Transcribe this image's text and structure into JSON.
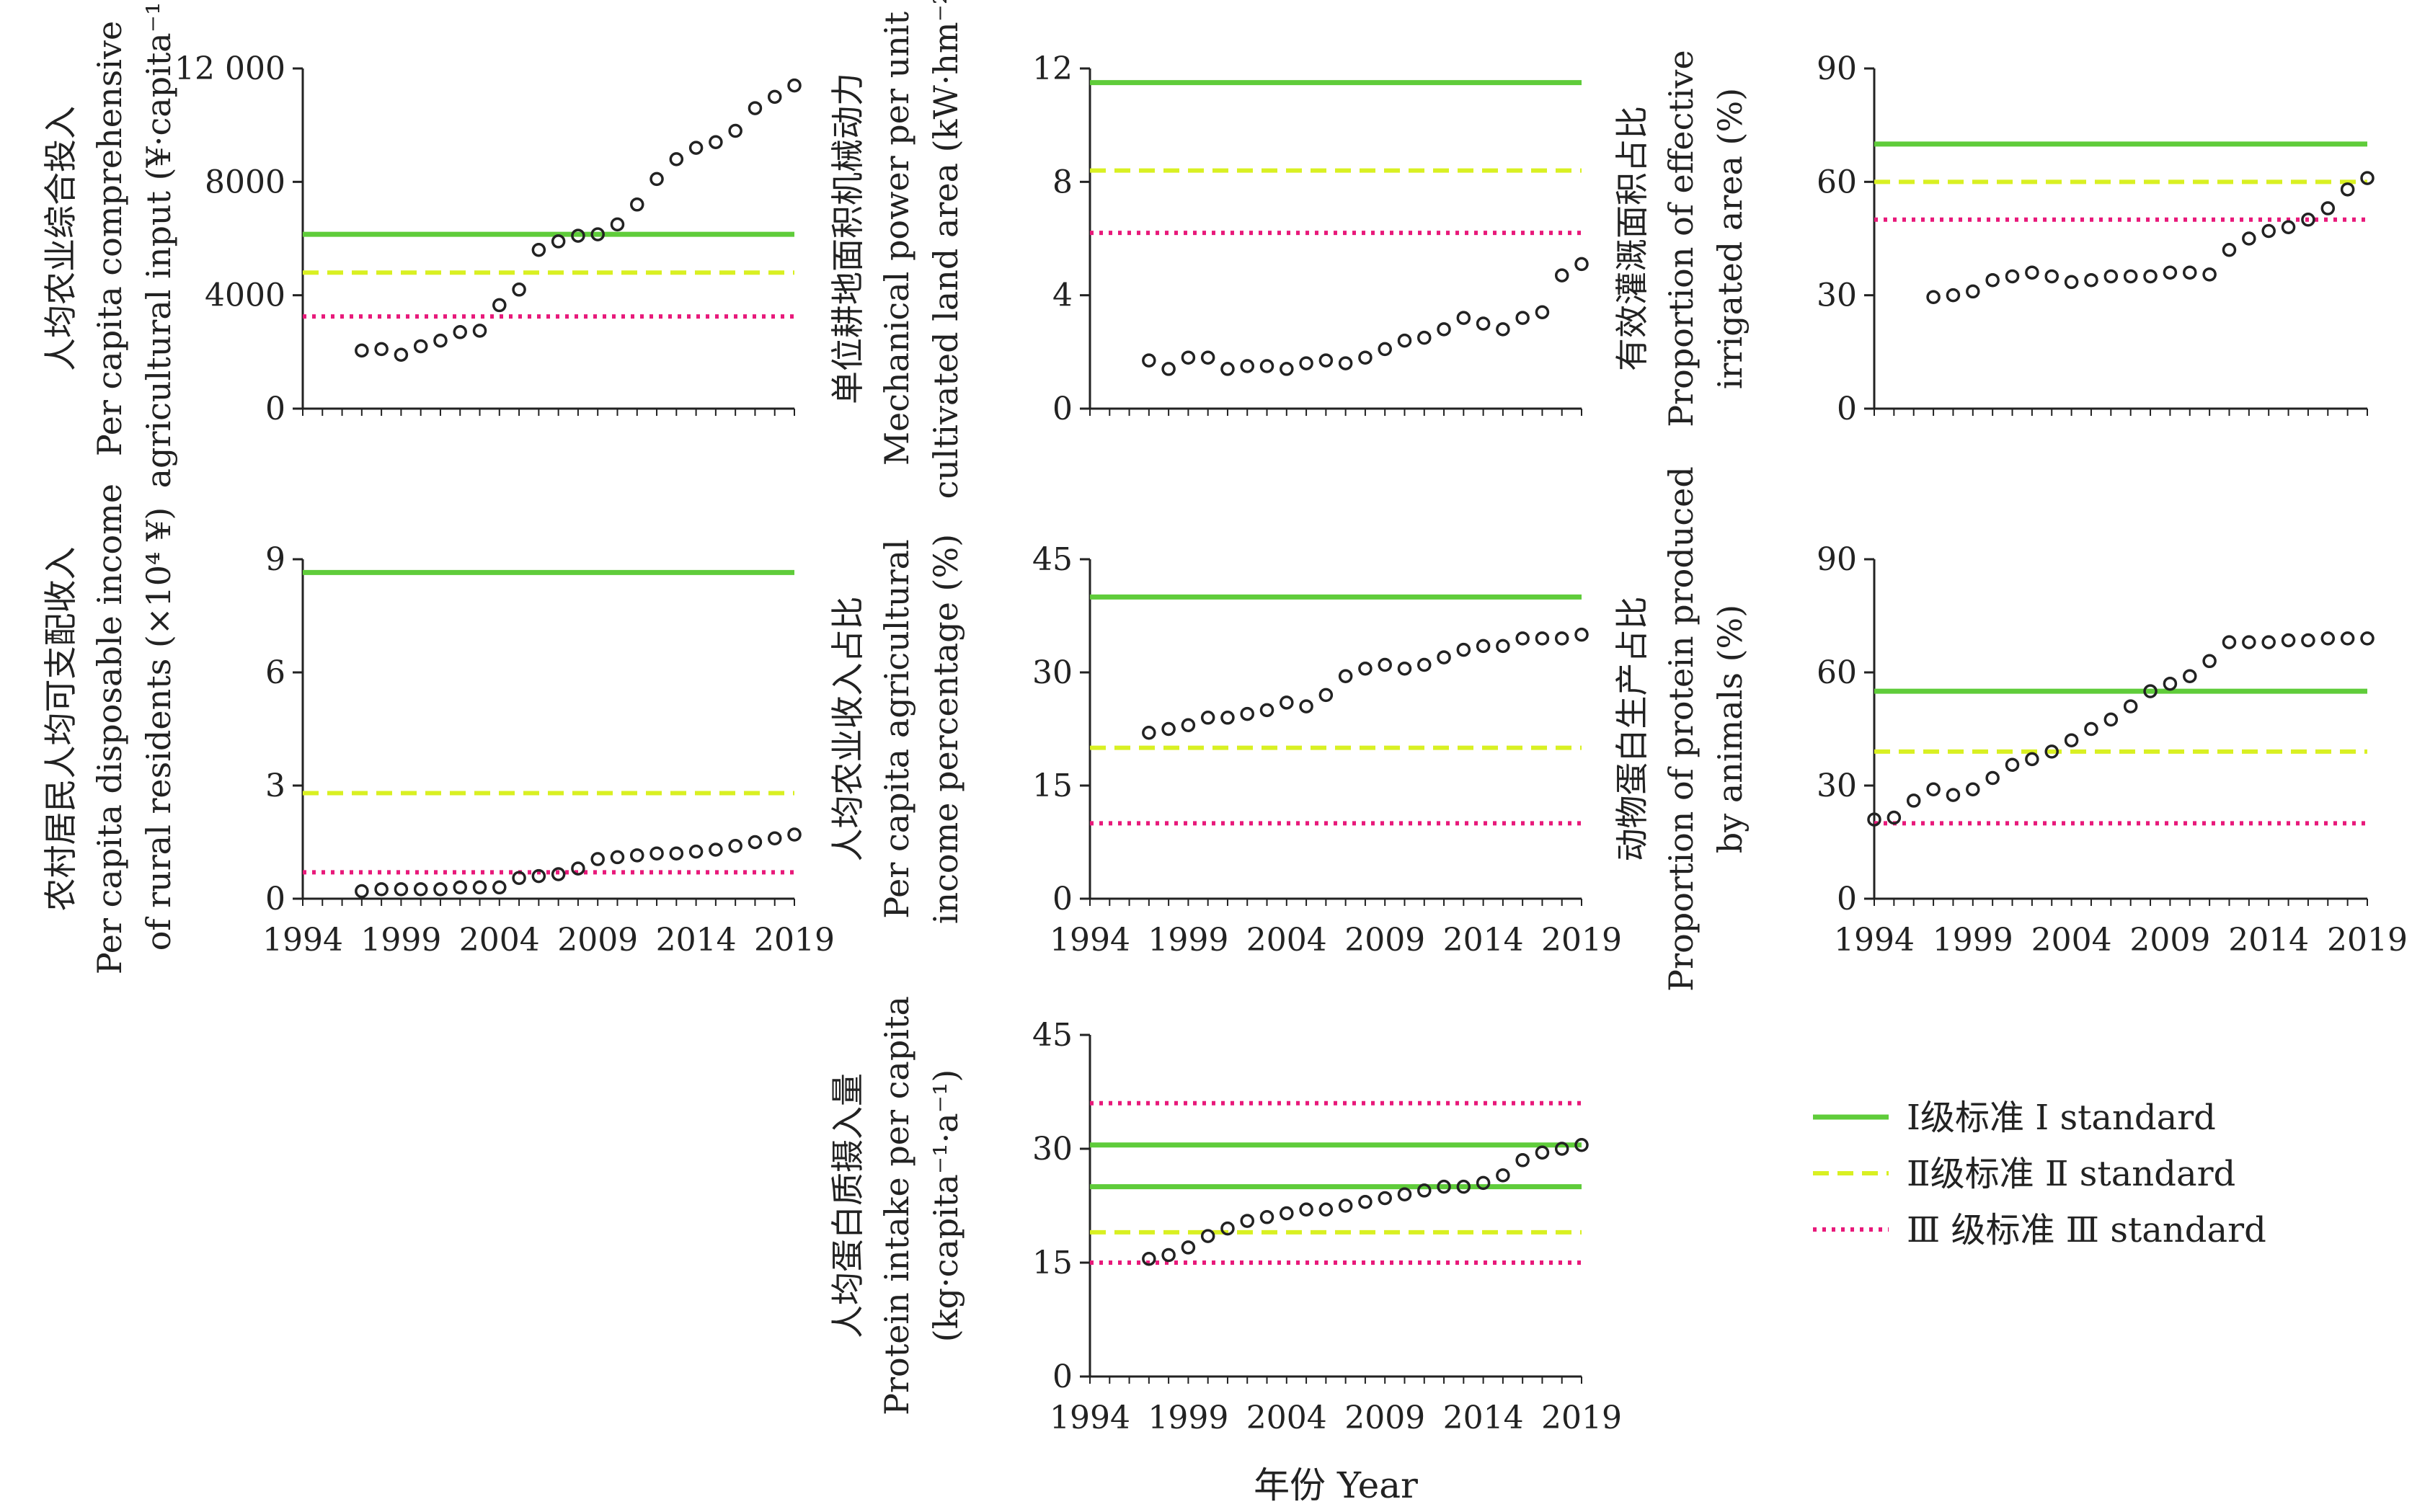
{
  "colors": {
    "standard_I": "#5fcc3a",
    "standard_II": "#d9f022",
    "standard_III": "#e8197a",
    "axis": "#222222",
    "marker": "#222222"
  },
  "x_axis_title": "年份 Year",
  "legend": {
    "position": "bottom-right",
    "items": [
      {
        "key": "I",
        "label": "Ⅰ级标准 Ⅰ standard",
        "style": "solid"
      },
      {
        "key": "II",
        "label": "Ⅱ级标准 Ⅱ standard",
        "style": "dashed"
      },
      {
        "key": "III",
        "label": "Ⅲ 级标准 Ⅲ standard",
        "style": "dotted"
      }
    ]
  },
  "chart_data": [
    {
      "type": "scatter",
      "ylabel_lines": [
        "人均农业综合投入",
        "Per capita comprehensive",
        "agricultural input (¥·capita⁻¹)"
      ],
      "xlim": [
        1994,
        2019
      ],
      "ylim": [
        0,
        12000
      ],
      "yticks": [
        0,
        4000,
        8000,
        12000
      ],
      "ytick_labels": [
        "0",
        "4000",
        "8000",
        "12 000"
      ],
      "xticks": [],
      "x": [
        1997,
        1998,
        1999,
        2000,
        2001,
        2002,
        2003,
        2004,
        2005,
        2006,
        2007,
        2008,
        2009,
        2010,
        2011,
        2012,
        2013,
        2014,
        2015,
        2016,
        2017,
        2018,
        2019
      ],
      "y": [
        2050,
        2100,
        1900,
        2200,
        2400,
        2700,
        2750,
        3650,
        4200,
        5600,
        5900,
        6100,
        6150,
        6500,
        7200,
        8100,
        8800,
        9200,
        9400,
        9800,
        10600,
        11000,
        11400
      ],
      "standards": [
        {
          "level": "I",
          "value": 6150
        },
        {
          "level": "II",
          "value": 4800
        },
        {
          "level": "III",
          "value": 3250
        }
      ]
    },
    {
      "type": "scatter",
      "ylabel_lines": [
        "单位耕地面积机械动力",
        "Mechanical power per unit",
        "cultivated land area (kW·hm⁻²)"
      ],
      "xlim": [
        1994,
        2019
      ],
      "ylim": [
        0,
        12
      ],
      "yticks": [
        0,
        4,
        8,
        12
      ],
      "ytick_labels": [
        "0",
        "4",
        "8",
        "12"
      ],
      "xticks": [],
      "x": [
        1997,
        1998,
        1999,
        2000,
        2001,
        2002,
        2003,
        2004,
        2005,
        2006,
        2007,
        2008,
        2009,
        2010,
        2011,
        2012,
        2013,
        2014,
        2015,
        2016,
        2017,
        2018,
        2019
      ],
      "y": [
        1.7,
        1.4,
        1.8,
        1.8,
        1.4,
        1.5,
        1.5,
        1.4,
        1.6,
        1.7,
        1.6,
        1.8,
        2.1,
        2.4,
        2.5,
        2.8,
        3.2,
        3.0,
        2.8,
        3.2,
        3.4,
        4.7,
        5.1
      ],
      "standards": [
        {
          "level": "I",
          "value": 11.5
        },
        {
          "level": "II",
          "value": 8.4
        },
        {
          "level": "III",
          "value": 6.2
        }
      ]
    },
    {
      "type": "scatter",
      "ylabel_lines": [
        "有效灌溉面积占比",
        "Proportion of effective",
        "irrigated area (%)"
      ],
      "xlim": [
        1994,
        2019
      ],
      "ylim": [
        0,
        90
      ],
      "yticks": [
        0,
        30,
        60,
        90
      ],
      "ytick_labels": [
        "0",
        "30",
        "60",
        "90"
      ],
      "xticks": [],
      "x": [
        1997,
        1998,
        1999,
        2000,
        2001,
        2002,
        2003,
        2004,
        2005,
        2006,
        2007,
        2008,
        2009,
        2010,
        2011,
        2012,
        2013,
        2014,
        2015,
        2016,
        2017,
        2018,
        2019
      ],
      "y": [
        29.5,
        30,
        31,
        34,
        35,
        36,
        35,
        33.5,
        34,
        35,
        35,
        35,
        36,
        36,
        35.5,
        42,
        45,
        47,
        48,
        50,
        53,
        58,
        61
      ],
      "standards": [
        {
          "level": "I",
          "value": 70
        },
        {
          "level": "II",
          "value": 60
        },
        {
          "level": "III",
          "value": 50
        }
      ]
    },
    {
      "type": "scatter",
      "ylabel_lines": [
        "农村居民人均可支配收入",
        "Per capita disposable income",
        "of rural residents (×10⁴ ¥)"
      ],
      "xlim": [
        1994,
        2019
      ],
      "ylim": [
        0,
        9
      ],
      "yticks": [
        0,
        3,
        6,
        9
      ],
      "ytick_labels": [
        "0",
        "3",
        "6",
        "9"
      ],
      "xticks": [
        1994,
        1999,
        2004,
        2009,
        2014,
        2019
      ],
      "x": [
        1997,
        1998,
        1999,
        2000,
        2001,
        2002,
        2003,
        2004,
        2005,
        2006,
        2007,
        2008,
        2009,
        2010,
        2011,
        2012,
        2013,
        2014,
        2015,
        2016,
        2017,
        2018,
        2019
      ],
      "y": [
        0.2,
        0.25,
        0.25,
        0.25,
        0.25,
        0.3,
        0.3,
        0.3,
        0.55,
        0.6,
        0.65,
        0.8,
        1.05,
        1.1,
        1.15,
        1.2,
        1.2,
        1.25,
        1.3,
        1.4,
        1.5,
        1.6,
        1.7
      ],
      "standards": [
        {
          "level": "I",
          "value": 8.65
        },
        {
          "level": "II",
          "value": 2.8
        },
        {
          "level": "III",
          "value": 0.7
        }
      ]
    },
    {
      "type": "scatter",
      "ylabel_lines": [
        "人均农业收入占比",
        "Per capita agricultural",
        "income percentage (%)"
      ],
      "xlim": [
        1994,
        2019
      ],
      "ylim": [
        0,
        45
      ],
      "yticks": [
        0,
        15,
        30,
        45
      ],
      "ytick_labels": [
        "0",
        "15",
        "30",
        "45"
      ],
      "xticks": [
        1994,
        1999,
        2004,
        2009,
        2014,
        2019
      ],
      "x": [
        1997,
        1998,
        1999,
        2000,
        2001,
        2002,
        2003,
        2004,
        2005,
        2006,
        2007,
        2008,
        2009,
        2010,
        2011,
        2012,
        2013,
        2014,
        2015,
        2016,
        2017,
        2018,
        2019
      ],
      "y": [
        22,
        22.5,
        23,
        24,
        24,
        24.5,
        25,
        26,
        25.5,
        27,
        29.5,
        30.5,
        31,
        30.5,
        31,
        32,
        33,
        33.5,
        33.5,
        34.5,
        34.5,
        34.5,
        35
      ],
      "standards": [
        {
          "level": "I",
          "value": 40
        },
        {
          "level": "II",
          "value": 20
        },
        {
          "level": "III",
          "value": 10
        }
      ]
    },
    {
      "type": "scatter",
      "ylabel_lines": [
        "动物蛋白生产占比",
        "Proportion of protein produced",
        "by animals (%)"
      ],
      "xlim": [
        1994,
        2019
      ],
      "ylim": [
        0,
        90
      ],
      "yticks": [
        0,
        30,
        60,
        90
      ],
      "ytick_labels": [
        "0",
        "30",
        "60",
        "90"
      ],
      "xticks": [
        1994,
        1999,
        2004,
        2009,
        2014,
        2019
      ],
      "x": [
        1994,
        1995,
        1996,
        1997,
        1998,
        1999,
        2000,
        2001,
        2002,
        2003,
        2004,
        2005,
        2006,
        2007,
        2008,
        2009,
        2010,
        2011,
        2012,
        2013,
        2014,
        2015,
        2016,
        2017,
        2018,
        2019
      ],
      "y": [
        21,
        21.5,
        26,
        29,
        27.5,
        29,
        32,
        35.5,
        37,
        39,
        42,
        45,
        47.5,
        51,
        55,
        57,
        59,
        63,
        68,
        68,
        68,
        68.5,
        68.5,
        69,
        69,
        69
      ],
      "standards": [
        {
          "level": "I",
          "value": 55
        },
        {
          "level": "II",
          "value": 39
        },
        {
          "level": "III",
          "value": 20
        }
      ]
    },
    {
      "type": "scatter",
      "ylabel_lines": [
        "人均蛋白质摄入量",
        "Protein intake per capita",
        "(kg·capita⁻¹·a⁻¹)"
      ],
      "xlim": [
        1994,
        2019
      ],
      "ylim": [
        0,
        45
      ],
      "yticks": [
        0,
        15,
        30,
        45
      ],
      "ytick_labels": [
        "0",
        "15",
        "30",
        "45"
      ],
      "xticks": [
        1994,
        1999,
        2004,
        2009,
        2014,
        2019
      ],
      "x": [
        1997,
        1998,
        1999,
        2000,
        2001,
        2002,
        2003,
        2004,
        2005,
        2006,
        2007,
        2008,
        2009,
        2010,
        2011,
        2012,
        2013,
        2014,
        2015,
        2016,
        2017,
        2018,
        2019
      ],
      "y": [
        15.5,
        16,
        17,
        18.5,
        19.5,
        20.5,
        21,
        21.5,
        22,
        22,
        22.5,
        23,
        23.5,
        24,
        24.5,
        25,
        25,
        25.5,
        26.5,
        28.5,
        29.5,
        30,
        30.5
      ],
      "standards": [
        {
          "level": "I",
          "value": 30.5
        },
        {
          "level": "I",
          "value": 25
        },
        {
          "level": "II",
          "value": 19
        },
        {
          "level": "III",
          "value": 36
        },
        {
          "level": "III",
          "value": 15
        }
      ]
    }
  ]
}
